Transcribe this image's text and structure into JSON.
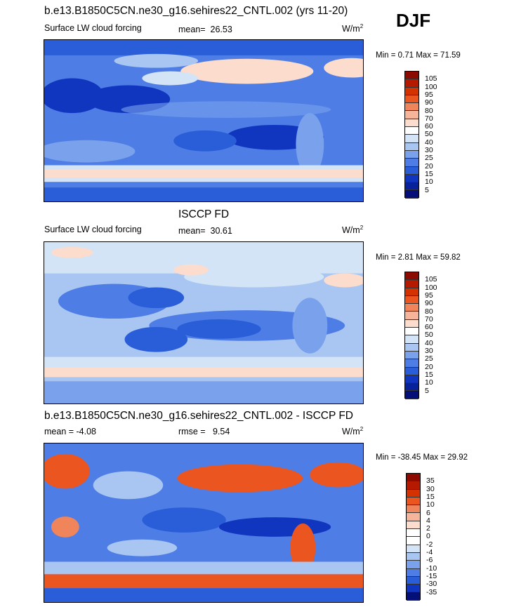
{
  "season": "DJF",
  "panels": [
    {
      "title": "b.e13.B1850C5CN.ne30_g16.sehires22_CNTL.002 (yrs 11-20)",
      "left_label": "Surface LW cloud forcing",
      "stat_label": "mean=",
      "stat_value": "26.53",
      "units": "W/m",
      "units_exp": "2",
      "minmax": "Min =   0.71 Max =  71.59",
      "scale": "abs"
    },
    {
      "title": "ISCCP FD",
      "left_label": "Surface LW cloud forcing",
      "stat_label": "mean=",
      "stat_value": "30.61",
      "units": "W/m",
      "units_exp": "2",
      "minmax": "Min =   2.81 Max =  59.82",
      "scale": "abs"
    },
    {
      "title": "b.e13.B1850C5CN.ne30_g16.sehires22_CNTL.002 - ISCCP FD",
      "left_label": "mean =  -4.08",
      "stat_label": "rmse =",
      "stat_value": "9.54",
      "units": "W/m",
      "units_exp": "2",
      "minmax": "Min = -38.45 Max =  29.92",
      "scale": "diff"
    }
  ],
  "colorbars": {
    "abs": {
      "labels": [
        "105",
        "100",
        "95",
        "90",
        "80",
        "70",
        "60",
        "50",
        "40",
        "30",
        "25",
        "20",
        "15",
        "10",
        "5"
      ],
      "colors": [
        "#8c0a00",
        "#b51a00",
        "#d43200",
        "#ea5520",
        "#f0845a",
        "#f6b49a",
        "#fbdccd",
        "#ffffff",
        "#d4e4f7",
        "#a9c6f2",
        "#7aa2ec",
        "#4e7ee5",
        "#2a5ed8",
        "#1036c0",
        "#07229a",
        "#050f78"
      ]
    },
    "diff": {
      "labels": [
        "35",
        "30",
        "15",
        "10",
        "6",
        "4",
        "2",
        "0",
        "-2",
        "-4",
        "-6",
        "-10",
        "-15",
        "-30",
        "-35"
      ],
      "colors": [
        "#8c0a00",
        "#b51a00",
        "#d43200",
        "#ea5520",
        "#f0845a",
        "#f6b49a",
        "#fbdccd",
        "#ffffff",
        "#ffffff",
        "#d4e4f7",
        "#a9c6f2",
        "#7aa2ec",
        "#4e7ee5",
        "#2a5ed8",
        "#1036c0",
        "#050f78"
      ]
    }
  }
}
